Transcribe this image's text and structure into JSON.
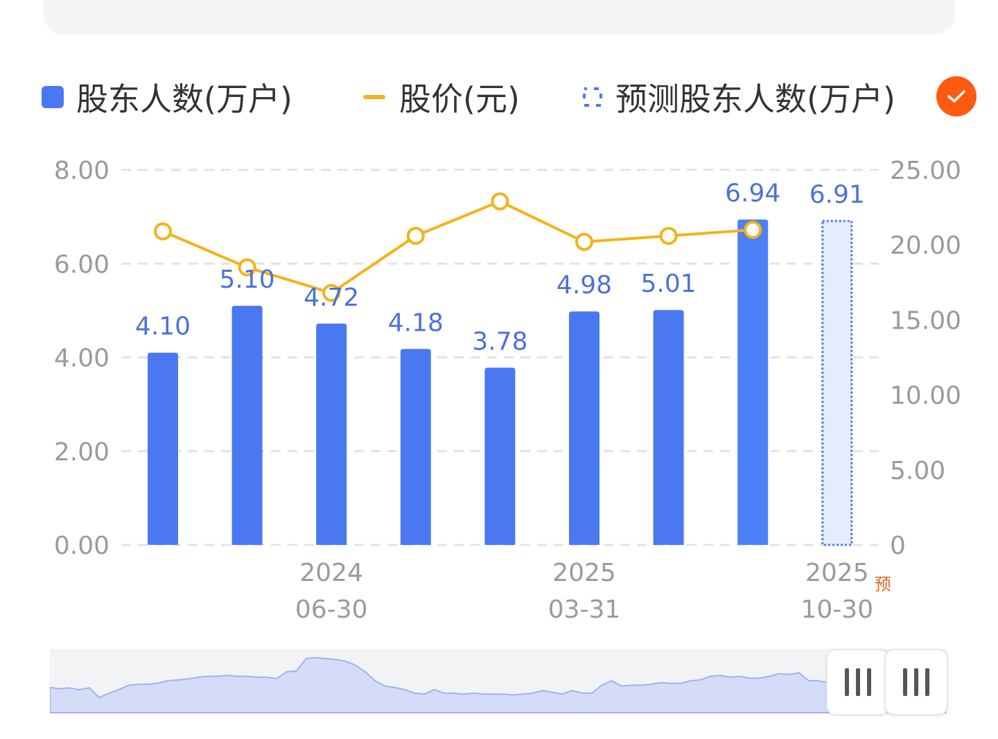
{
  "legend": {
    "holders": "股东人数(万户)",
    "price": "股价(元)",
    "predicted": "预测股东人数(万户)"
  },
  "colors": {
    "bar": "#4a78f0",
    "bar_last": "#4d80f7",
    "line": "#f5b217",
    "predicted_fill": "#e3edfb",
    "predicted_border": "#4a78f0",
    "toggle": "#ff5a12",
    "pred_tag": "#e0661c"
  },
  "chart_data": {
    "type": "bar",
    "categories": [
      "",
      "",
      "2024\n06-30",
      "",
      "",
      "2025\n03-31",
      "",
      "",
      "2025\n10-30"
    ],
    "x_tick_labels": [
      {
        "index": 2,
        "year": "2024",
        "date": "06-30"
      },
      {
        "index": 5,
        "year": "2025",
        "date": "03-31"
      },
      {
        "index": 8,
        "year": "2025",
        "date": "10-30",
        "tag": "预"
      }
    ],
    "series": [
      {
        "name": "股东人数(万户)",
        "type": "bar",
        "axis": "left",
        "values": [
          4.1,
          5.1,
          4.72,
          4.18,
          3.78,
          4.98,
          5.01,
          6.94,
          null
        ]
      },
      {
        "name": "股价(元)",
        "type": "line",
        "axis": "right",
        "values": [
          20.9,
          18.5,
          16.8,
          20.6,
          22.9,
          20.2,
          20.6,
          21.0,
          null
        ]
      },
      {
        "name": "预测股东人数(万户)",
        "type": "bar",
        "axis": "left",
        "values": [
          null,
          null,
          null,
          null,
          null,
          null,
          null,
          null,
          6.91
        ]
      }
    ],
    "data_labels": [
      "4.10",
      "5.10",
      "4.72",
      "4.18",
      "3.78",
      "4.98",
      "5.01",
      "6.94",
      "6.91"
    ],
    "left_axis": {
      "ylim": [
        0,
        8
      ],
      "ticks": [
        "0.00",
        "2.00",
        "4.00",
        "6.00",
        "8.00"
      ]
    },
    "right_axis": {
      "ylim": [
        0,
        25
      ],
      "ticks": [
        "0",
        "5.00",
        "10.00",
        "15.00",
        "20.00",
        "25.00"
      ]
    },
    "grid": true,
    "legend_position": "top"
  },
  "navigator": {
    "series": [
      0.35,
      0.32,
      0.34,
      0.3,
      0.34,
      0.12,
      0.22,
      0.3,
      0.4,
      0.42,
      0.42,
      0.45,
      0.5,
      0.52,
      0.54,
      0.58,
      0.6,
      0.6,
      0.62,
      0.6,
      0.6,
      0.58,
      0.58,
      0.55,
      0.7,
      0.72,
      1.0,
      1.02,
      1.0,
      0.98,
      0.94,
      0.85,
      0.7,
      0.5,
      0.38,
      0.35,
      0.3,
      0.22,
      0.2,
      0.3,
      0.22,
      0.22,
      0.2,
      0.22,
      0.2,
      0.2,
      0.2,
      0.18,
      0.2,
      0.22,
      0.28,
      0.24,
      0.2,
      0.28,
      0.22,
      0.22,
      0.4,
      0.5,
      0.38,
      0.4,
      0.4,
      0.42,
      0.46,
      0.44,
      0.44,
      0.5,
      0.52,
      0.6,
      0.62,
      0.58,
      0.6,
      0.56,
      0.56,
      0.6,
      0.66,
      0.64,
      0.68,
      0.5,
      0.5,
      0.46,
      0.52,
      0.5,
      0.56,
      0.62,
      0.6,
      0.64,
      0.7,
      0.66,
      0.6,
      0.58,
      0.62,
      0.6
    ]
  }
}
